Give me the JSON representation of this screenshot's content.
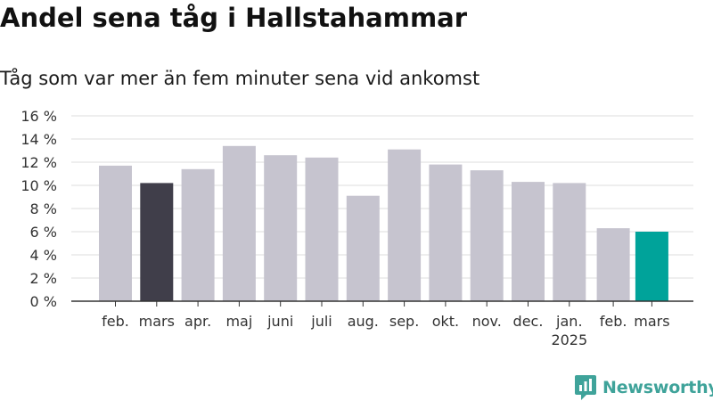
{
  "title": "Andel sena tåg i Hallstahammar",
  "subtitle": "Tåg som var mer än fem minuter sena vid ankomst",
  "brand": {
    "name": "Newsworthy",
    "color": "#3fa39a",
    "icon": "newsworthy-logo-icon"
  },
  "colors": {
    "bar": "#c6c4cf",
    "highlight_dark": "#403e4a",
    "highlight_teal": "#00a39a",
    "grid": "#dddddd",
    "axis": "#333333"
  },
  "chart_data": {
    "type": "bar",
    "categories": [
      "feb.",
      "mars",
      "apr.",
      "maj",
      "juni",
      "juli",
      "aug.",
      "sep.",
      "okt.",
      "nov.",
      "dec.",
      "jan.",
      "feb.",
      "mars"
    ],
    "year_labels": [
      "",
      "",
      "",
      "",
      "",
      "",
      "",
      "",
      "",
      "",
      "",
      "2025",
      "",
      ""
    ],
    "values": [
      11.7,
      10.2,
      11.4,
      13.4,
      12.6,
      12.4,
      9.1,
      13.1,
      11.8,
      11.3,
      10.3,
      10.2,
      6.3,
      6.0
    ],
    "highlight": [
      "",
      "dark",
      "",
      "",
      "",
      "",
      "",
      "",
      "",
      "",
      "",
      "",
      "",
      "teal"
    ],
    "ylim": [
      0,
      16
    ],
    "yticks": [
      0,
      2,
      4,
      6,
      8,
      10,
      12,
      14,
      16
    ],
    "ytick_labels": [
      "0 %",
      "2 %",
      "4 %",
      "6 %",
      "8 %",
      "10 %",
      "12 %",
      "14 %",
      "16 %"
    ],
    "grid": true
  }
}
